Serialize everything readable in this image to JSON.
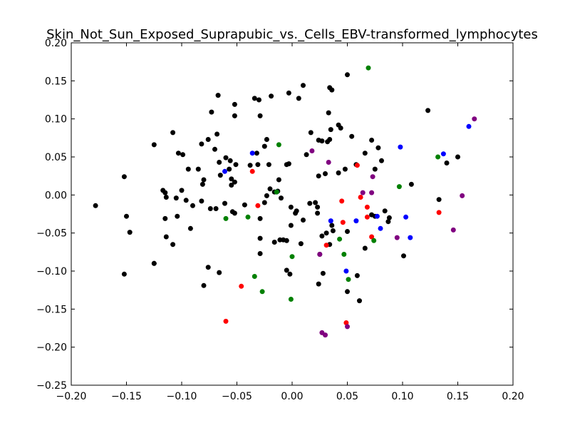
{
  "chart_data": {
    "type": "scatter",
    "title": "Skin_Not_Sun_Exposed_Suprapubic_vs._Cells_EBV-transformed_lymphocytes",
    "xlabel": "",
    "ylabel": "",
    "xlim": [
      -0.2,
      0.2
    ],
    "ylim": [
      -0.25,
      0.2
    ],
    "x_ticks": [
      -0.2,
      -0.15,
      -0.1,
      -0.05,
      0.0,
      0.05,
      0.1,
      0.15,
      0.2
    ],
    "x_tick_labels": [
      "−0.20",
      "−0.15",
      "−0.10",
      "−0.05",
      "0.00",
      "0.05",
      "0.10",
      "0.15",
      "0.20"
    ],
    "y_ticks": [
      -0.25,
      -0.2,
      -0.15,
      -0.1,
      -0.05,
      0.0,
      0.05,
      0.1,
      0.15,
      0.2
    ],
    "y_tick_labels": [
      "−0.25",
      "−0.20",
      "−0.15",
      "−0.10",
      "−0.05",
      "0.00",
      "0.05",
      "0.10",
      "0.15",
      "0.20"
    ],
    "grid": false,
    "legend": "none",
    "series": [
      {
        "color": "#000000",
        "points": [
          [
            -0.178,
            -0.014
          ],
          [
            -0.152,
            0.024
          ],
          [
            -0.15,
            -0.028
          ],
          [
            -0.147,
            -0.049
          ],
          [
            -0.152,
            -0.104
          ],
          [
            -0.125,
            0.066
          ],
          [
            -0.125,
            -0.09
          ],
          [
            -0.108,
            0.082
          ],
          [
            -0.103,
            0.055
          ],
          [
            -0.099,
            0.053
          ],
          [
            -0.094,
            0.034
          ],
          [
            -0.082,
            0.067
          ],
          [
            -0.085,
            0.034
          ],
          [
            -0.08,
            0.02
          ],
          [
            -0.081,
            0.014
          ],
          [
            -0.076,
            0.073
          ],
          [
            -0.073,
            0.109
          ],
          [
            -0.067,
            0.131
          ],
          [
            -0.068,
            0.08
          ],
          [
            -0.07,
            0.06
          ],
          [
            -0.066,
            0.043
          ],
          [
            -0.065,
            0.026
          ],
          [
            -0.06,
            0.049
          ],
          [
            -0.056,
            0.045
          ],
          [
            -0.057,
            0.034
          ],
          [
            -0.051,
            0.04
          ],
          [
            -0.055,
            0.021
          ],
          [
            -0.052,
            0.017
          ],
          [
            -0.055,
            0.013
          ],
          [
            -0.052,
            0.104
          ],
          [
            -0.052,
            0.119
          ],
          [
            -0.038,
            0.039
          ],
          [
            -0.034,
            0.127
          ],
          [
            -0.03,
            0.125
          ],
          [
            -0.019,
            0.13
          ],
          [
            -0.029,
            0.104
          ],
          [
            -0.025,
            0.064
          ],
          [
            -0.023,
            0.073
          ],
          [
            -0.032,
            0.055
          ],
          [
            -0.021,
            0.04
          ],
          [
            -0.031,
            0.04
          ],
          [
            -0.012,
            0.02
          ],
          [
            -0.02,
            0.008
          ],
          [
            -0.016,
            0.004
          ],
          [
            -0.013,
            0.005
          ],
          [
            -0.005,
            0.04
          ],
          [
            -0.003,
            0.041
          ],
          [
            -0.003,
            0.134
          ],
          [
            0.006,
            0.127
          ],
          [
            0.01,
            0.144
          ],
          [
            0.017,
            0.082
          ],
          [
            0.013,
            0.053
          ],
          [
            0.024,
            0.072
          ],
          [
            0.027,
            0.071
          ],
          [
            0.032,
            0.07
          ],
          [
            0.034,
            0.073
          ],
          [
            0.035,
            0.086
          ],
          [
            0.036,
            0.138
          ],
          [
            0.034,
            0.141
          ],
          [
            0.033,
            0.108
          ],
          [
            0.042,
            0.092
          ],
          [
            0.05,
            0.158
          ],
          [
            0.044,
            0.088
          ],
          [
            0.054,
            0.077
          ],
          [
            0.024,
            0.025
          ],
          [
            0.03,
            0.028
          ],
          [
            0.042,
            0.029
          ],
          [
            0.048,
            0.034
          ],
          [
            0.058,
            0.04
          ],
          [
            0.066,
            0.055
          ],
          [
            0.072,
            0.072
          ],
          [
            0.078,
            0.062
          ],
          [
            0.081,
            0.045
          ],
          [
            0.075,
            0.034
          ],
          [
            0.123,
            0.111
          ],
          [
            0.14,
            0.042
          ],
          [
            0.15,
            0.05
          ],
          [
            0.108,
            0.014
          ],
          [
            0.084,
            -0.021
          ],
          [
            0.088,
            -0.03
          ],
          [
            0.087,
            -0.035
          ],
          [
            0.066,
            -0.07
          ],
          [
            0.101,
            -0.08
          ],
          [
            0.133,
            -0.006
          ],
          [
            0.072,
            -0.026
          ],
          [
            0.075,
            -0.028
          ],
          [
            0.036,
            -0.04
          ],
          [
            0.037,
            -0.047
          ],
          [
            0.034,
            -0.065
          ],
          [
            0.027,
            -0.054
          ],
          [
            0.031,
            -0.05
          ],
          [
            0.05,
            -0.048
          ],
          [
            0.025,
            -0.078
          ],
          [
            0.028,
            -0.103
          ],
          [
            0.024,
            -0.117
          ],
          [
            0.059,
            -0.106
          ],
          [
            0.05,
            -0.127
          ],
          [
            0.061,
            -0.139
          ],
          [
            -0.117,
            0.006
          ],
          [
            -0.115,
            0.003
          ],
          [
            -0.114,
            -0.003
          ],
          [
            -0.105,
            -0.004
          ],
          [
            -0.1,
            0.006
          ],
          [
            -0.096,
            -0.007
          ],
          [
            -0.09,
            -0.014
          ],
          [
            -0.082,
            -0.008
          ],
          [
            -0.074,
            -0.018
          ],
          [
            -0.069,
            -0.018
          ],
          [
            -0.061,
            -0.011
          ],
          [
            -0.054,
            -0.022
          ],
          [
            -0.052,
            -0.024
          ],
          [
            -0.043,
            -0.013
          ],
          [
            -0.025,
            -0.01
          ],
          [
            -0.023,
            -0.001
          ],
          [
            -0.01,
            -0.004
          ],
          [
            -0.001,
            -0.016
          ],
          [
            0.004,
            -0.021
          ],
          [
            0.003,
            -0.024
          ],
          [
            0.016,
            -0.011
          ],
          [
            0.021,
            -0.01
          ],
          [
            0.023,
            -0.016
          ],
          [
            0.023,
            -0.024
          ],
          [
            -0.115,
            -0.031
          ],
          [
            -0.114,
            -0.055
          ],
          [
            -0.104,
            -0.028
          ],
          [
            -0.108,
            -0.065
          ],
          [
            -0.092,
            -0.044
          ],
          [
            -0.029,
            -0.031
          ],
          [
            -0.029,
            -0.057
          ],
          [
            -0.029,
            -0.077
          ],
          [
            -0.016,
            -0.062
          ],
          [
            -0.011,
            -0.059
          ],
          [
            -0.008,
            -0.059
          ],
          [
            -0.005,
            -0.06
          ],
          [
            -0.001,
            -0.04
          ],
          [
            0.01,
            -0.033
          ],
          [
            0.008,
            -0.064
          ],
          [
            -0.005,
            -0.099
          ],
          [
            -0.002,
            -0.104
          ],
          [
            -0.125,
            -0.09
          ],
          [
            -0.076,
            -0.095
          ],
          [
            -0.066,
            -0.102
          ],
          [
            -0.08,
            -0.119
          ]
        ]
      },
      {
        "color": "#0000ff",
        "points": [
          [
            -0.061,
            0.031
          ],
          [
            -0.036,
            0.055
          ],
          [
            -0.014,
            0.004
          ],
          [
            0.098,
            0.063
          ],
          [
            0.137,
            0.054
          ],
          [
            0.16,
            0.09
          ],
          [
            0.035,
            -0.034
          ],
          [
            0.058,
            -0.034
          ],
          [
            0.077,
            -0.028
          ],
          [
            0.08,
            -0.044
          ],
          [
            0.103,
            -0.029
          ],
          [
            0.107,
            -0.056
          ],
          [
            0.049,
            -0.1
          ]
        ]
      },
      {
        "color": "#ff0000",
        "points": [
          [
            -0.036,
            0.031
          ],
          [
            0.059,
            0.039
          ],
          [
            0.062,
            -0.003
          ],
          [
            0.068,
            -0.016
          ],
          [
            0.068,
            -0.029
          ],
          [
            0.045,
            -0.008
          ],
          [
            0.046,
            -0.036
          ],
          [
            0.072,
            -0.055
          ],
          [
            0.133,
            -0.023
          ],
          [
            -0.031,
            -0.014
          ],
          [
            0.031,
            -0.066
          ],
          [
            -0.046,
            -0.12
          ],
          [
            -0.06,
            -0.166
          ],
          [
            0.049,
            -0.168
          ]
        ]
      },
      {
        "color": "#008000",
        "points": [
          [
            0.069,
            0.167
          ],
          [
            -0.012,
            0.066
          ],
          [
            0.097,
            0.011
          ],
          [
            0.132,
            0.05
          ],
          [
            -0.014,
            0.004
          ],
          [
            -0.06,
            -0.031
          ],
          [
            -0.04,
            -0.029
          ],
          [
            0.074,
            -0.06
          ],
          [
            -0.034,
            -0.107
          ],
          [
            -0.027,
            -0.127
          ],
          [
            0.0,
            -0.081
          ],
          [
            0.043,
            -0.058
          ],
          [
            0.047,
            -0.078
          ],
          [
            0.051,
            -0.111
          ],
          [
            -0.001,
            -0.137
          ]
        ]
      },
      {
        "color": "#800080",
        "points": [
          [
            0.018,
            0.058
          ],
          [
            0.033,
            0.043
          ],
          [
            0.073,
            0.024
          ],
          [
            0.064,
            0.003
          ],
          [
            0.072,
            0.003
          ],
          [
            0.165,
            0.1
          ],
          [
            0.154,
            -0.001
          ],
          [
            0.095,
            -0.056
          ],
          [
            0.146,
            -0.046
          ],
          [
            0.025,
            -0.078
          ],
          [
            0.027,
            -0.181
          ],
          [
            0.03,
            -0.184
          ],
          [
            0.05,
            -0.173
          ]
        ]
      }
    ]
  }
}
